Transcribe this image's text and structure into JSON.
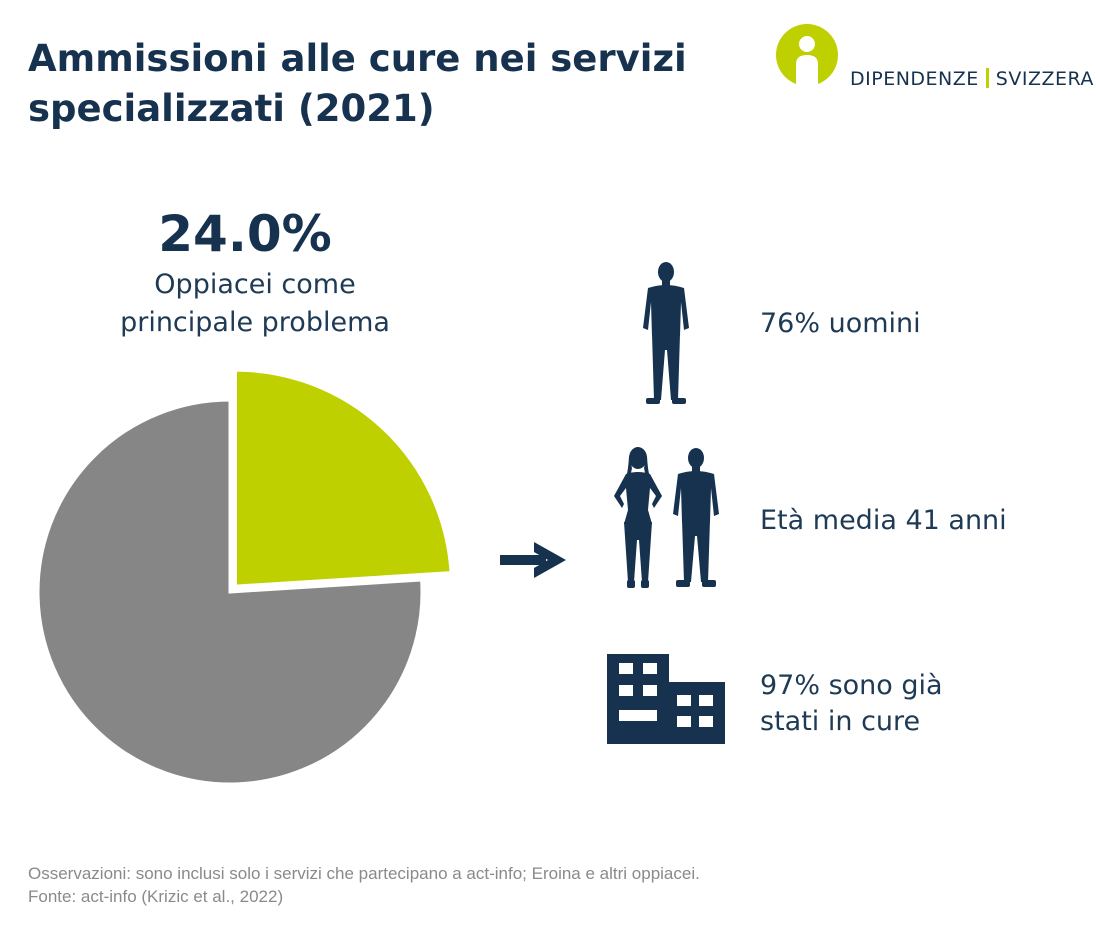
{
  "title": {
    "line1": "Ammissioni alle cure nei servizi",
    "line2": "specializzati (2021)"
  },
  "logo": {
    "word1": "DIPENDENZE",
    "word2": "SVIZZERA",
    "colors": {
      "green": "#bfd000",
      "navy": "#16324f"
    }
  },
  "highlight": {
    "value": "24.0%",
    "label_line1": "Oppiacei come",
    "label_line2": "principale problema"
  },
  "chart_data": {
    "type": "pie",
    "slices": [
      {
        "label": "Oppiacei come principale problema",
        "value": 24.0,
        "color": "#bfd000"
      },
      {
        "label": "",
        "value": 76.0,
        "color": "#868686"
      }
    ],
    "start_angle_deg": 0,
    "direction": "clockwise",
    "exploded_slice": 0
  },
  "stats": [
    {
      "icon": "man-silhouette-icon",
      "lines": [
        "76% uomini"
      ]
    },
    {
      "icon": "woman-and-man-silhouette-icon",
      "lines": [
        "Età media 41 anni"
      ]
    },
    {
      "icon": "building-icon",
      "lines": [
        "97% sono già",
        "stati in cure"
      ]
    }
  ],
  "footer": {
    "note": "Osservazioni: sono inclusi solo i servizi che partecipano a act-info; Eroina e altri oppiacei.",
    "source": "Fonte: act-info (Krizic et al., 2022)"
  },
  "colors": {
    "navy": "#16324f",
    "text": "#1e3a55",
    "green": "#bfd000",
    "grey": "#868686",
    "note_grey": "#8a8a8a"
  }
}
